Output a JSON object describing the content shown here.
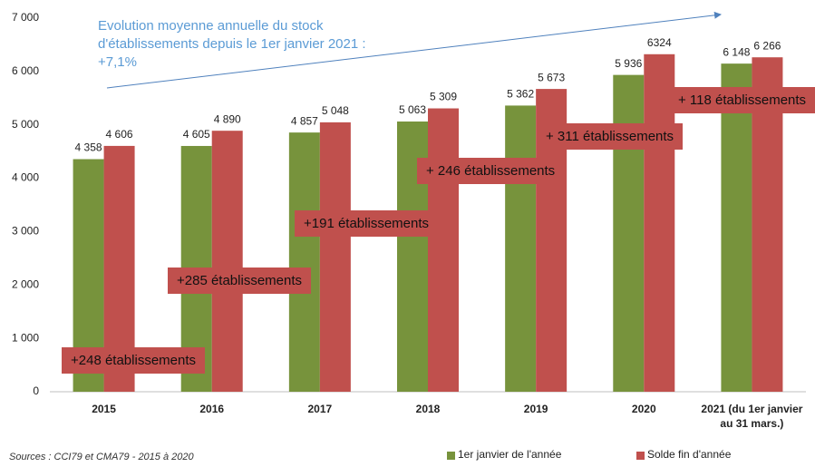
{
  "chart_data": {
    "type": "bar",
    "categories": [
      "2015",
      "2016",
      "2017",
      "2018",
      "2019",
      "2020",
      "2021 (du 1er janvier au 31 mars.)"
    ],
    "series": [
      {
        "name": "1er janvier de l'année",
        "color": "#77933c",
        "values": [
          4358,
          4605,
          4857,
          5063,
          5362,
          5936,
          6148
        ],
        "value_labels": [
          "4 358",
          "4 605",
          "4 857",
          "5 063",
          "5 362",
          "5 936",
          "6 148"
        ]
      },
      {
        "name": "Solde fin d'année",
        "color": "#c0504d",
        "values": [
          4606,
          4890,
          5048,
          5309,
          5673,
          6324,
          6266
        ],
        "value_labels": [
          "4 606",
          "4 890",
          "5 048",
          "5 309",
          "5 673",
          "6324",
          "6 266"
        ]
      }
    ],
    "ylim": [
      0,
      7000
    ],
    "yticks": [
      0,
      {
        "value": 1000,
        "label": "1 000"
      },
      {
        "value": 2000,
        "label": "2 000"
      },
      {
        "value": 3000,
        "label": "3 000"
      },
      {
        "value": 4000,
        "label": "4 000"
      },
      {
        "value": 5000,
        "label": "5 000"
      },
      {
        "value": 6000,
        "label": "6 000"
      },
      {
        "value": 7000,
        "label": "7 000"
      }
    ],
    "grid": false,
    "legend": "bottom",
    "annotations": [
      "+248 établissements",
      "+285 établissements",
      "+191 établissements",
      "+ 246 établissements",
      "+ 311 établissements",
      "+ 118 établissements"
    ],
    "trend_note": [
      "Evolution moyenne annuelle du stock",
      "d'établissements depuis le 1er janvier 2021 :",
      "+7,1%"
    ],
    "source": "Sources : CCI79 et CMA79 - 2015 à 2020"
  }
}
